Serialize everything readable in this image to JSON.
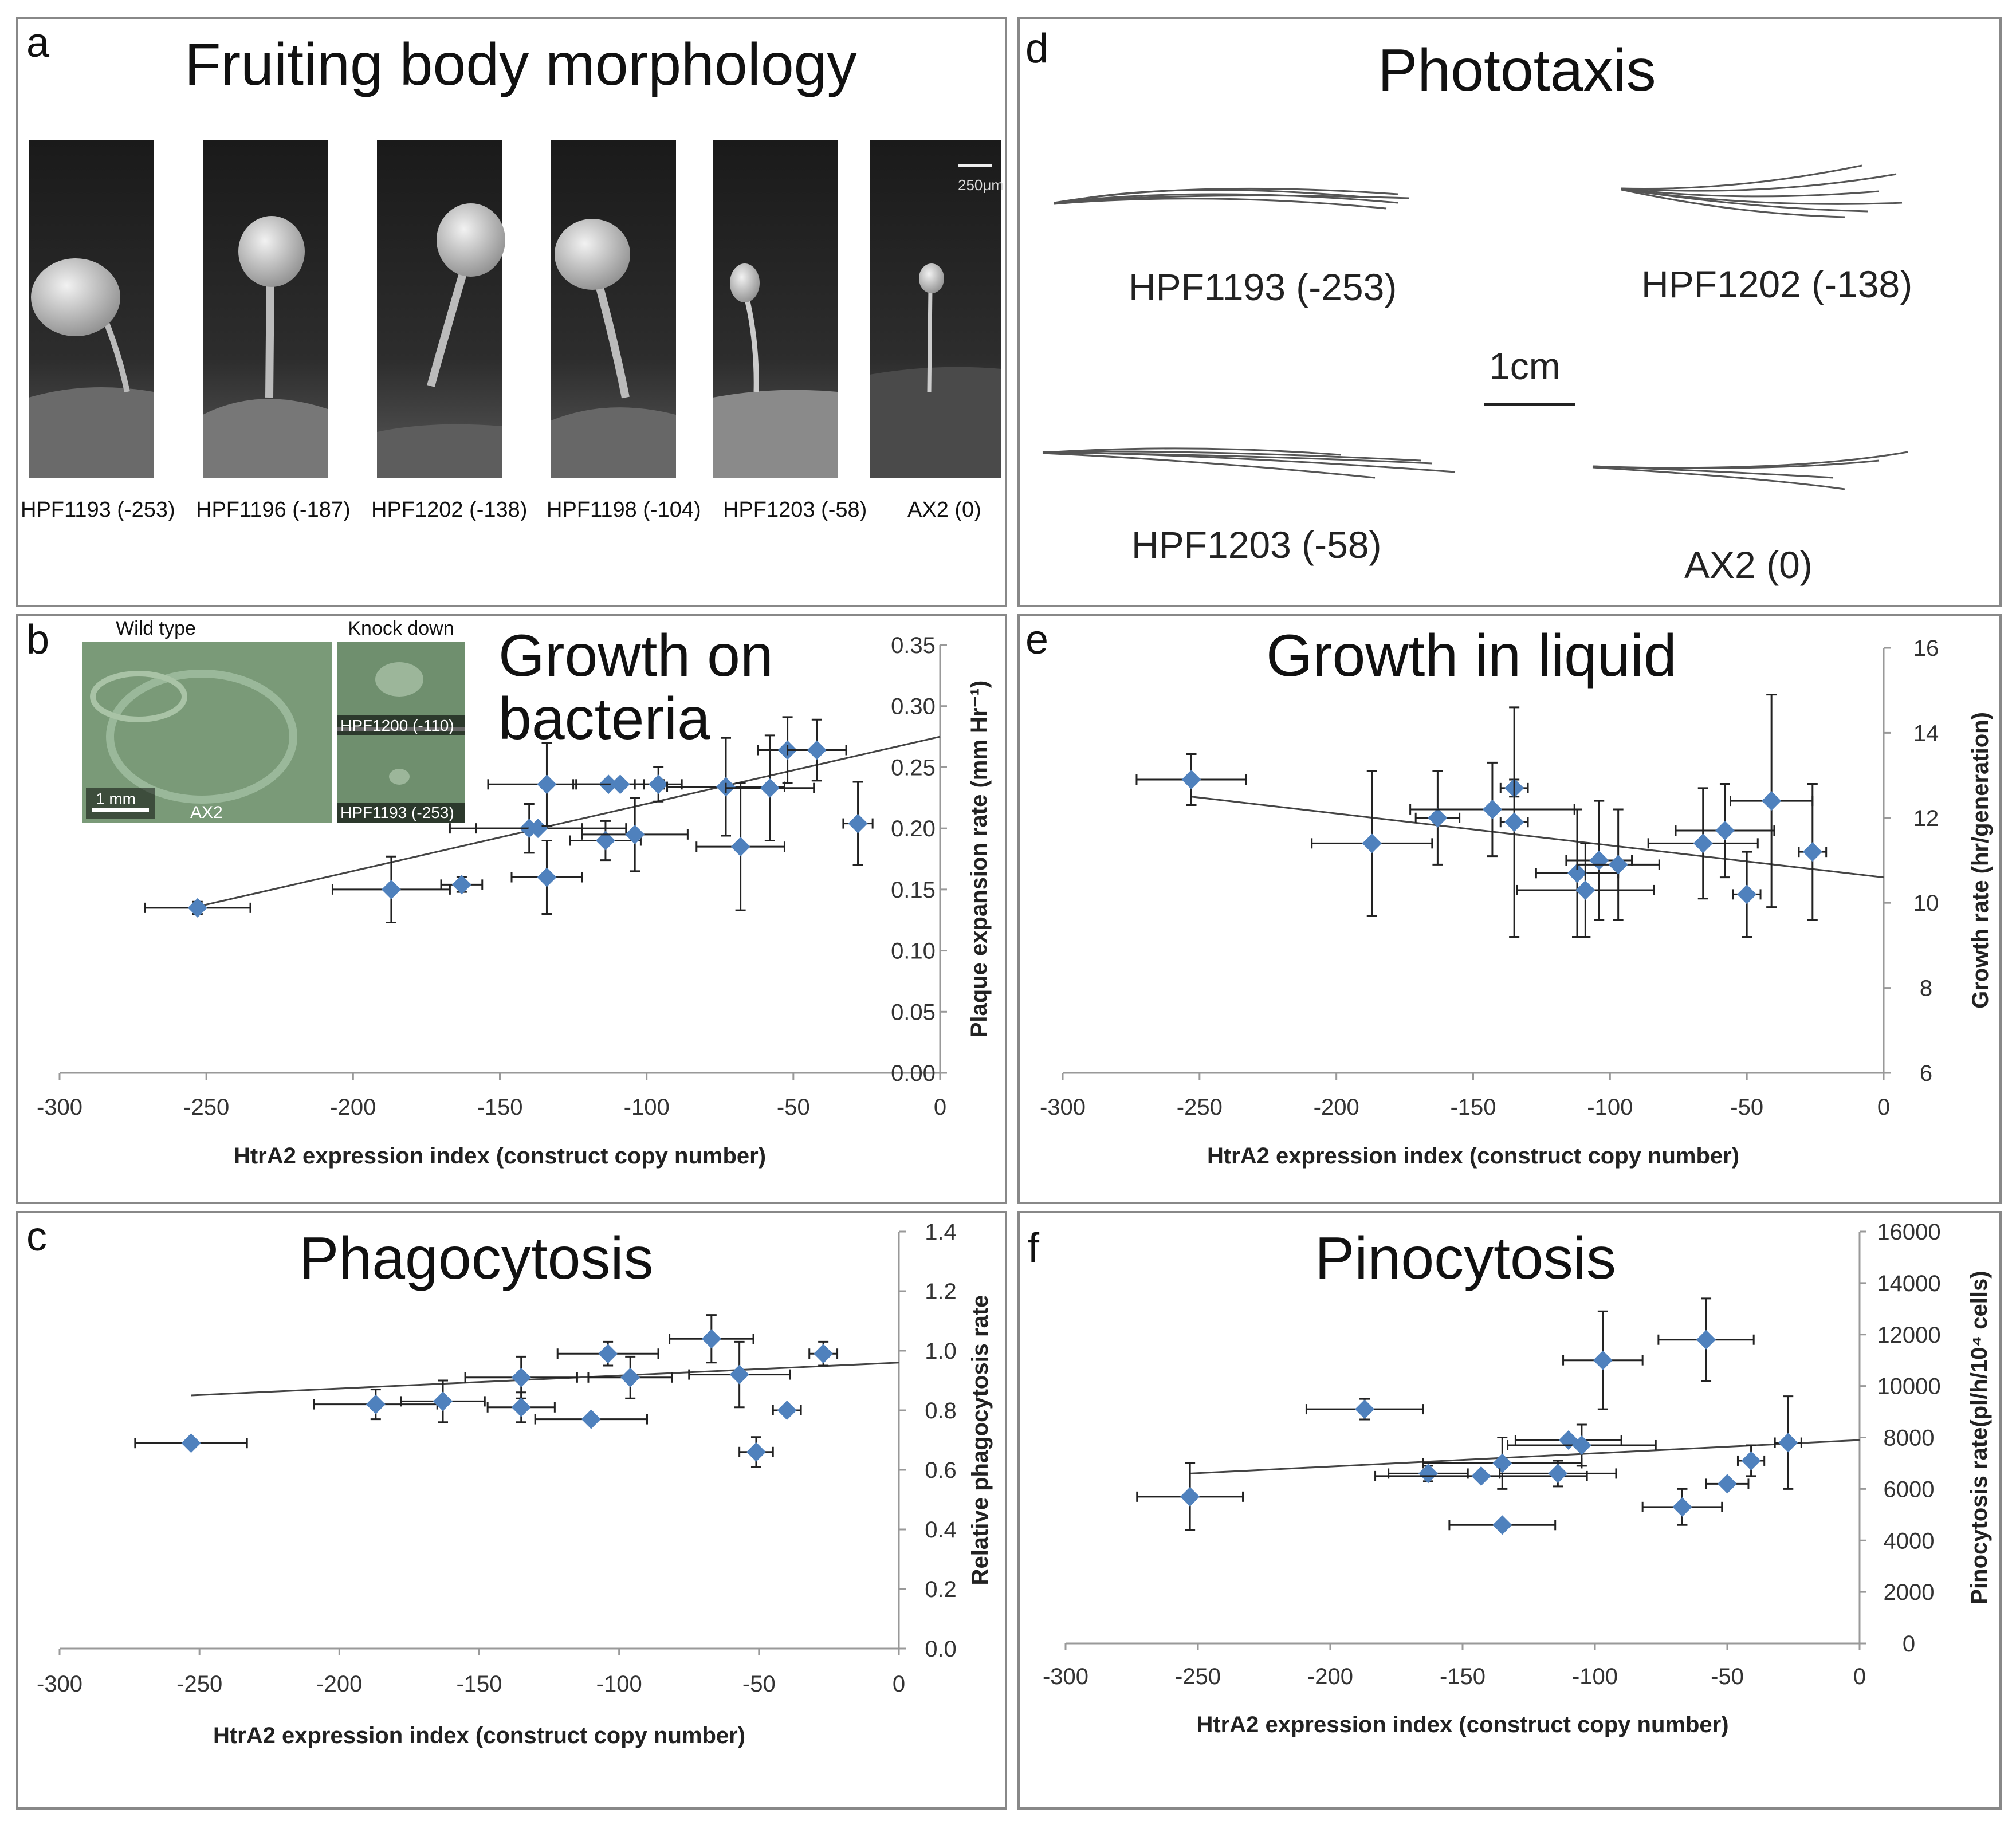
{
  "panels": {
    "a": {
      "letter": "a",
      "title": "Fruiting body morphology",
      "strains": [
        "HPF1193 (-253)",
        "HPF1196 (-187)",
        "HPF1202 (-138)",
        "HPF1198 (-104)",
        "HPF1203 (-58)",
        "AX2 (0)"
      ],
      "scale": "250μm"
    },
    "b": {
      "letter": "b",
      "title_line1": "Growth on",
      "title_line2": "bacteria",
      "inset_wild": "Wild type",
      "inset_knock": "Knock down",
      "inset_ax2": "AX2",
      "inset_scale": "1 mm",
      "inset_k1": "HPF1200 (-110)",
      "inset_k2": "HPF1193 (-253)"
    },
    "c": {
      "letter": "c",
      "title": "Phagocytosis"
    },
    "d": {
      "letter": "d",
      "title": "Phototaxis",
      "labels": [
        "HPF1193 (-253)",
        "HPF1202 (-138)",
        "HPF1203 (-58)",
        "AX2 (0)"
      ],
      "scale": "1cm"
    },
    "e": {
      "letter": "e",
      "title": "Growth in liquid"
    },
    "f": {
      "letter": "f",
      "title": "Pinocytosis"
    }
  },
  "colors": {
    "marker": "#4f81bd",
    "trend": "#444444",
    "border": "#888888"
  },
  "chart_data": [
    {
      "id": "b",
      "type": "scatter",
      "xlabel": "HtrA2 expression index (construct copy number)",
      "ylabel": "Plaque expansion rate (mm Hr⁻¹)",
      "xlim": [
        -300,
        0
      ],
      "ylim": [
        0,
        0.35
      ],
      "xticks": [
        "-300",
        "-250",
        "-200",
        "-150",
        "-100",
        "-50",
        "0"
      ],
      "yticks": [
        "0.00",
        "0.05",
        "0.10",
        "0.15",
        "0.20",
        "0.25",
        "0.30",
        "0.35"
      ],
      "trend": [
        [
          -253,
          0.136
        ],
        [
          0,
          0.275
        ]
      ],
      "points": [
        [
          -253,
          0.135,
          18,
          0.005
        ],
        [
          -187,
          0.15,
          20,
          0.027
        ],
        [
          -163,
          0.154,
          7,
          0.006
        ],
        [
          -140,
          0.2,
          18,
          0.02
        ],
        [
          -137,
          0.2,
          30,
          0
        ],
        [
          -134,
          0.236,
          20,
          0.034
        ],
        [
          -134,
          0.16,
          12,
          0.03
        ],
        [
          -114,
          0.19,
          12,
          0.016
        ],
        [
          -113,
          0.236,
          12,
          0
        ],
        [
          -109,
          0.236,
          15,
          0
        ],
        [
          -104,
          0.195,
          18,
          0.03
        ],
        [
          -96,
          0.236,
          8,
          0.014
        ],
        [
          -73,
          0.234,
          20,
          0.04
        ],
        [
          -68,
          0.185,
          15,
          0.052
        ],
        [
          -58,
          0.233,
          15,
          0.043
        ],
        [
          -52,
          0.264,
          10,
          0.027
        ],
        [
          -42,
          0.264,
          10,
          0.025
        ],
        [
          -28,
          0.204,
          5,
          0.034
        ]
      ]
    },
    {
      "id": "c",
      "type": "scatter",
      "xlabel": "HtrA2 expression index (construct copy number)",
      "ylabel": "Relative phagocytosis rate",
      "xlim": [
        -300,
        0
      ],
      "ylim": [
        0,
        1.4
      ],
      "xticks": [
        "-300",
        "-250",
        "-200",
        "-150",
        "-100",
        "-50",
        "0"
      ],
      "yticks": [
        "0.0",
        "0.2",
        "0.4",
        "0.6",
        "0.8",
        "1.0",
        "1.2",
        "1.4"
      ],
      "trend": [
        [
          -253,
          0.85
        ],
        [
          0,
          0.96
        ]
      ],
      "points": [
        [
          -253,
          0.69,
          20,
          0
        ],
        [
          -187,
          0.82,
          22,
          0.05
        ],
        [
          -163,
          0.83,
          15,
          0.07
        ],
        [
          -135,
          0.91,
          20,
          0.07
        ],
        [
          -135,
          0.81,
          12,
          0.05
        ],
        [
          -110,
          0.77,
          20,
          0
        ],
        [
          -104,
          0.99,
          18,
          0.04
        ],
        [
          -96,
          0.91,
          15,
          0.07
        ],
        [
          -67,
          1.04,
          15,
          0.08
        ],
        [
          -57,
          0.92,
          18,
          0.11
        ],
        [
          -51,
          0.66,
          6,
          0.05
        ],
        [
          -40,
          0.8,
          5,
          0
        ],
        [
          -27,
          0.99,
          5,
          0.04
        ]
      ]
    },
    {
      "id": "e",
      "type": "scatter",
      "xlabel": "HtrA2 expression index (construct copy number)",
      "ylabel": "Growth rate (hr/generation)",
      "xlim": [
        -300,
        0
      ],
      "ylim": [
        6,
        16
      ],
      "xticks": [
        "-300",
        "-250",
        "-200",
        "-150",
        "-100",
        "-50",
        "0"
      ],
      "yticks": [
        "6",
        "8",
        "10",
        "12",
        "14",
        "16"
      ],
      "trend": [
        [
          -253,
          12.5
        ],
        [
          0,
          10.6
        ]
      ],
      "points": [
        [
          -253,
          12.9,
          20,
          0.6
        ],
        [
          -187,
          11.4,
          22,
          1.7
        ],
        [
          -163,
          12.0,
          8,
          1.1
        ],
        [
          -143,
          12.2,
          30,
          1.1
        ],
        [
          -135,
          12.7,
          5,
          0.2
        ],
        [
          -135,
          11.9,
          5,
          2.7
        ],
        [
          -112,
          10.7,
          15,
          1.5
        ],
        [
          -109,
          10.3,
          25,
          1.1
        ],
        [
          -104,
          11.0,
          12,
          1.4
        ],
        [
          -97,
          10.9,
          15,
          1.3
        ],
        [
          -66,
          11.4,
          20,
          1.3
        ],
        [
          -58,
          11.7,
          18,
          1.1
        ],
        [
          -50,
          10.2,
          5,
          1.0
        ],
        [
          -41,
          12.4,
          15,
          2.5
        ],
        [
          -26,
          11.2,
          5,
          1.6
        ]
      ]
    },
    {
      "id": "f",
      "type": "scatter",
      "xlabel": "HtrA2 expression index (construct copy number)",
      "ylabel": "Pinocytosis rate(pl/h/10⁴ cells)",
      "xlim": [
        -300,
        0
      ],
      "ylim": [
        0,
        16000
      ],
      "xticks": [
        "-300",
        "-250",
        "-200",
        "-150",
        "-100",
        "-50",
        "0"
      ],
      "yticks": [
        "0",
        "2000",
        "4000",
        "6000",
        "8000",
        "10000",
        "12000",
        "14000",
        "16000"
      ],
      "trend": [
        [
          -253,
          6600
        ],
        [
          0,
          7900
        ]
      ],
      "points": [
        [
          -253,
          5700,
          20,
          1300
        ],
        [
          -187,
          9100,
          22,
          400
        ],
        [
          -163,
          6600,
          15,
          300
        ],
        [
          -143,
          6500,
          40,
          0
        ],
        [
          -135,
          4600,
          20,
          0
        ],
        [
          -135,
          7000,
          30,
          1000
        ],
        [
          -114,
          6600,
          22,
          500
        ],
        [
          -110,
          7900,
          20,
          0
        ],
        [
          -105,
          7700,
          28,
          800
        ],
        [
          -97,
          11000,
          15,
          1900
        ],
        [
          -67,
          5300,
          15,
          700
        ],
        [
          -58,
          11800,
          18,
          1600
        ],
        [
          -50,
          6200,
          8,
          0
        ],
        [
          -41,
          7100,
          5,
          600
        ],
        [
          -27,
          7800,
          5,
          1800
        ]
      ]
    }
  ]
}
